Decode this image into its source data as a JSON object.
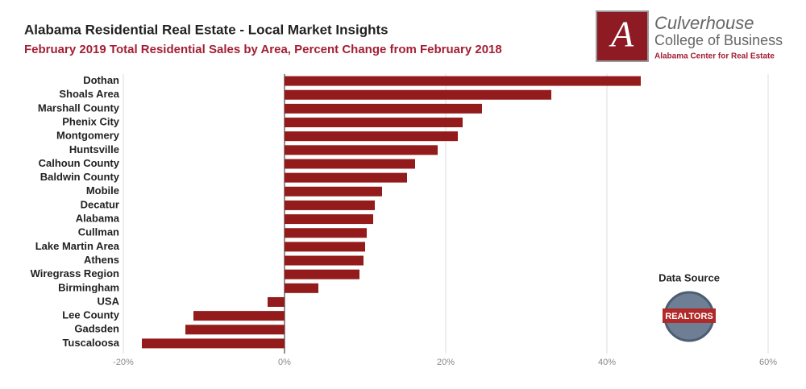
{
  "chart_data": {
    "type": "bar",
    "orientation": "horizontal",
    "title": "Alabama Residential Real Estate - Local Market Insights",
    "subtitle": "February 2019 Total Residential Sales by Area, Percent Change from February 2018",
    "categories": [
      "Dothan",
      "Shoals Area",
      "Marshall County",
      "Phenix City",
      "Montgomery",
      "Huntsville",
      "Calhoun County",
      "Baldwin County",
      "Mobile",
      "Decatur",
      "Alabama",
      "Cullman",
      "Lake Martin Area",
      "Athens",
      "Wiregrass Region",
      "Birmingham",
      "USA",
      "Lee County",
      "Gadsden",
      "Tuscaloosa"
    ],
    "values": [
      44.2,
      33.1,
      24.5,
      22.1,
      21.5,
      19.0,
      16.2,
      15.2,
      12.1,
      11.2,
      11.0,
      10.2,
      10.0,
      9.8,
      9.3,
      4.2,
      -2.1,
      -11.3,
      -12.3,
      -17.7
    ],
    "color": "#931b1b",
    "xlim": [
      -20,
      60
    ],
    "xticks": [
      {
        "value": -20,
        "label": "-20%"
      },
      {
        "value": 0,
        "label": "0%"
      },
      {
        "value": 20,
        "label": "20%"
      },
      {
        "value": 40,
        "label": "40%"
      },
      {
        "value": 60,
        "label": "60%"
      }
    ],
    "grid": true
  },
  "branding": {
    "logo_letter": "A",
    "name": "Culverhouse",
    "college": "College of Business",
    "center": "Alabama Center for Real Estate",
    "data_source": "Data Source",
    "badge": "REALTORS"
  }
}
